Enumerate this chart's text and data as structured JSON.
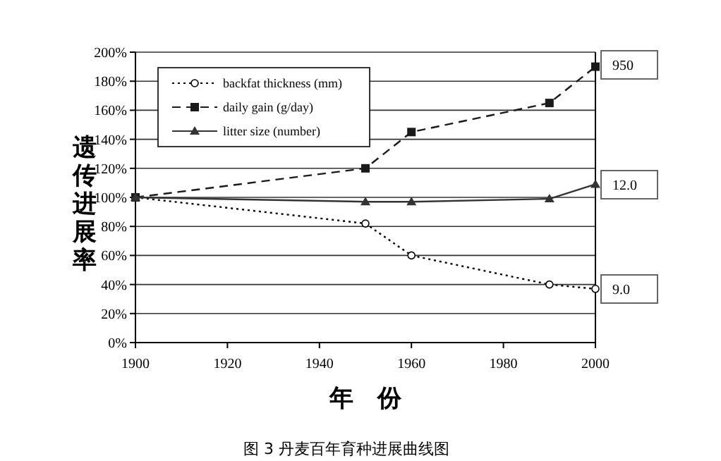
{
  "chart_data": {
    "type": "line",
    "xlabel": "年　份",
    "ylabel": "遗传进展率",
    "x": [
      1900,
      1950,
      1960,
      1990,
      2000
    ],
    "series": [
      {
        "name": "backfat thickness (mm)",
        "color": "#000000",
        "values": [
          100,
          82,
          60,
          40,
          37
        ],
        "line_style": "dotted",
        "marker": "circle"
      },
      {
        "name": "daily gain (g/day)",
        "color": "#1a1a1a",
        "values": [
          100,
          120,
          145,
          165,
          190
        ],
        "line_style": "dashed",
        "marker": "square"
      },
      {
        "name": "litter size (number)",
        "color": "#333333",
        "values": [
          100,
          97,
          97,
          99,
          109
        ],
        "line_style": "solid",
        "marker": "triangle"
      }
    ],
    "xlim": [
      1900,
      2000
    ],
    "xticks": [
      1900,
      1920,
      1940,
      1960,
      1980,
      2000
    ],
    "ylim": [
      0,
      200
    ],
    "yticks": [
      {
        "value": 0,
        "label": "0%"
      },
      {
        "value": 20,
        "label": "20%"
      },
      {
        "value": 40,
        "label": "40%"
      },
      {
        "value": 60,
        "label": "60%"
      },
      {
        "value": 80,
        "label": "80%"
      },
      {
        "value": 100,
        "label": "100%"
      },
      {
        "value": 120,
        "label": "120%"
      },
      {
        "value": 140,
        "label": "140%"
      },
      {
        "value": 160,
        "label": "160%"
      },
      {
        "value": 180,
        "label": "180%"
      },
      {
        "value": 200,
        "label": "200%"
      }
    ],
    "grid": "y",
    "legend": "top left",
    "annotations": [
      "950",
      "12.0",
      "9.0",
      "图 3  丹麦百年育种进展曲线图"
    ]
  }
}
